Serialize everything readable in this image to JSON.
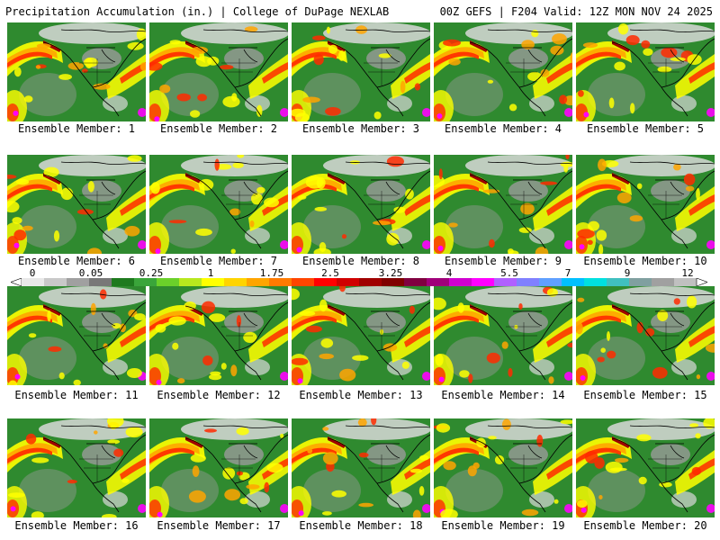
{
  "header": {
    "title": "Precipitation Accumulation (in.) | College of DuPage NEXLAB",
    "run_info": "00Z GEFS | F204 Valid: 12Z MON NOV 24 2025"
  },
  "members": [
    {
      "label": "Ensemble Member: 1"
    },
    {
      "label": "Ensemble Member: 2"
    },
    {
      "label": "Ensemble Member: 3"
    },
    {
      "label": "Ensemble Member: 4"
    },
    {
      "label": "Ensemble Member: 5"
    },
    {
      "label": "Ensemble Member: 6"
    },
    {
      "label": "Ensemble Member: 7"
    },
    {
      "label": "Ensemble Member: 8"
    },
    {
      "label": "Ensemble Member: 9"
    },
    {
      "label": "Ensemble Member: 10"
    },
    {
      "label": "Ensemble Member: 11"
    },
    {
      "label": "Ensemble Member: 12"
    },
    {
      "label": "Ensemble Member: 13"
    },
    {
      "label": "Ensemble Member: 14"
    },
    {
      "label": "Ensemble Member: 15"
    },
    {
      "label": "Ensemble Member: 16"
    },
    {
      "label": "Ensemble Member: 17"
    },
    {
      "label": "Ensemble Member: 18"
    },
    {
      "label": "Ensemble Member: 19"
    },
    {
      "label": "Ensemble Member: 20"
    }
  ],
  "colorbar": {
    "tick_labels": [
      "0",
      "0.05",
      "0.25",
      "1",
      "1.75",
      "2.5",
      "3.25",
      "4",
      "5.5",
      "7",
      "9",
      "12"
    ],
    "colors": [
      "#e8e8e8",
      "#c8c8c8",
      "#a0a0a0",
      "#787878",
      "#1e7a1e",
      "#3aa53a",
      "#6bd02a",
      "#b8e81e",
      "#ffff00",
      "#ffd400",
      "#ffa500",
      "#ff7a00",
      "#ff4500",
      "#ff0000",
      "#d00000",
      "#a00000",
      "#800000",
      "#800040",
      "#a0007a",
      "#d000d0",
      "#ff00ff",
      "#b060ff",
      "#8080ff",
      "#60a0ff",
      "#00c0ff",
      "#00e0e0",
      "#40c0c0",
      "#80a0a0",
      "#a0a0a0",
      "#c0c0c0"
    ]
  },
  "palette": {
    "ocean_green": "#2f8a2f",
    "dry_gray": "#9a9a9a",
    "light_gray": "#d8d8d8",
    "yellow": "#ffff00",
    "orange": "#ffa500",
    "red": "#ff2a00",
    "dark_red": "#a00000",
    "magenta": "#ff00ff",
    "coast_black": "#000000"
  }
}
